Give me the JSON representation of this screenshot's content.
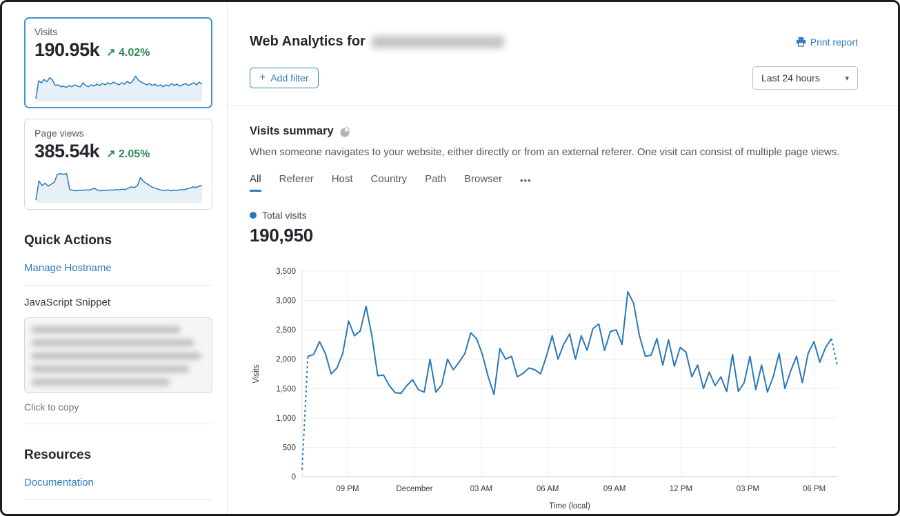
{
  "icons": {
    "plus": "+",
    "caret": "▾",
    "more": "•••"
  },
  "sidebar": {
    "metric_cards": [
      {
        "label": "Visits",
        "value": "190.95k",
        "delta_arrow": "↗",
        "delta": "4.02%",
        "selected": true,
        "sparkline": [
          4,
          58,
          52,
          62,
          55,
          68,
          60,
          44,
          46,
          40,
          42,
          38,
          44,
          40,
          46,
          42,
          40,
          52,
          44,
          40,
          46,
          42,
          48,
          44,
          50,
          46,
          52,
          48,
          54,
          50,
          46,
          52,
          48,
          56,
          50,
          58,
          72,
          60,
          54,
          50,
          46,
          50,
          44,
          48,
          42,
          46,
          40,
          46,
          42,
          50,
          44,
          48,
          42,
          46,
          50,
          44,
          48,
          52,
          46,
          54,
          48
        ]
      },
      {
        "label": "Page views",
        "value": "385.54k",
        "delta_arrow": "↗",
        "delta": "2.05%",
        "selected": false,
        "sparkline": [
          4,
          62,
          48,
          55,
          46,
          52,
          58,
          82,
          84,
          82,
          84,
          36,
          34,
          32,
          34,
          33,
          35,
          34,
          36,
          40,
          34,
          32,
          34,
          33,
          35,
          34,
          36,
          35,
          37,
          36,
          40,
          44,
          42,
          48,
          72,
          60,
          54,
          48,
          42,
          40,
          36,
          34,
          33,
          35,
          32,
          34,
          33,
          36,
          35,
          38,
          40,
          44,
          42,
          46,
          48
        ]
      }
    ],
    "quick_actions": {
      "title": "Quick Actions",
      "manage_hostname_label": "Manage Hostname",
      "snippet_label": "JavaScript Snippet",
      "copy_hint": "Click to copy"
    },
    "resources": {
      "title": "Resources",
      "documentation_label": "Documentation"
    }
  },
  "header": {
    "title_prefix": "Web Analytics for",
    "print_label": "Print report",
    "add_filter_label": "Add filter",
    "time_range": "Last 24 hours"
  },
  "summary": {
    "title": "Visits summary",
    "description": "When someone navigates to your website, either directly or from an external referer. One visit can consist of multiple page views.",
    "tabs": [
      "All",
      "Referer",
      "Host",
      "Country",
      "Path",
      "Browser"
    ],
    "active_tab": "All",
    "legend_label": "Total visits",
    "total_value": "190,950"
  },
  "chart_data": {
    "type": "line",
    "series_name": "Total visits",
    "xlabel": "Time (local)",
    "ylabel": "Visits",
    "ylim": [
      0,
      3500
    ],
    "yticks": [
      0,
      500,
      1000,
      1500,
      2000,
      2500,
      3000,
      3500
    ],
    "xticks": [
      {
        "label": "09 PM",
        "pos": 0.085
      },
      {
        "label": "December",
        "pos": 0.21
      },
      {
        "label": "03 AM",
        "pos": 0.335
      },
      {
        "label": "06 AM",
        "pos": 0.459
      },
      {
        "label": "09 AM",
        "pos": 0.584
      },
      {
        "label": "12 PM",
        "pos": 0.708
      },
      {
        "label": "03 PM",
        "pos": 0.833
      },
      {
        "label": "06 PM",
        "pos": 0.957
      }
    ],
    "grid": true,
    "legend_position": "above",
    "line_color": "#2878b8",
    "dashed_head_points": 2,
    "dashed_tail_points": 2,
    "values": [
      120,
      2050,
      2080,
      2300,
      2100,
      1750,
      1850,
      2100,
      2650,
      2400,
      2480,
      2900,
      2400,
      1720,
      1730,
      1550,
      1430,
      1420,
      1550,
      1650,
      1480,
      1440,
      2000,
      1440,
      1560,
      2000,
      1820,
      1950,
      2100,
      2450,
      2350,
      2080,
      1700,
      1400,
      2180,
      2000,
      2050,
      1700,
      1760,
      1850,
      1820,
      1750,
      2050,
      2400,
      2000,
      2260,
      2430,
      2000,
      2400,
      2150,
      2520,
      2600,
      2150,
      2470,
      2500,
      2250,
      3150,
      2950,
      2400,
      2050,
      2070,
      2350,
      1900,
      2330,
      1880,
      2200,
      2120,
      1700,
      1900,
      1500,
      1780,
      1550,
      1700,
      1450,
      2080,
      1450,
      1600,
      2050,
      1480,
      1900,
      1440,
      1700,
      2100,
      1500,
      1800,
      2050,
      1600,
      2100,
      2300,
      1950,
      2200,
      2350,
      1900
    ]
  }
}
